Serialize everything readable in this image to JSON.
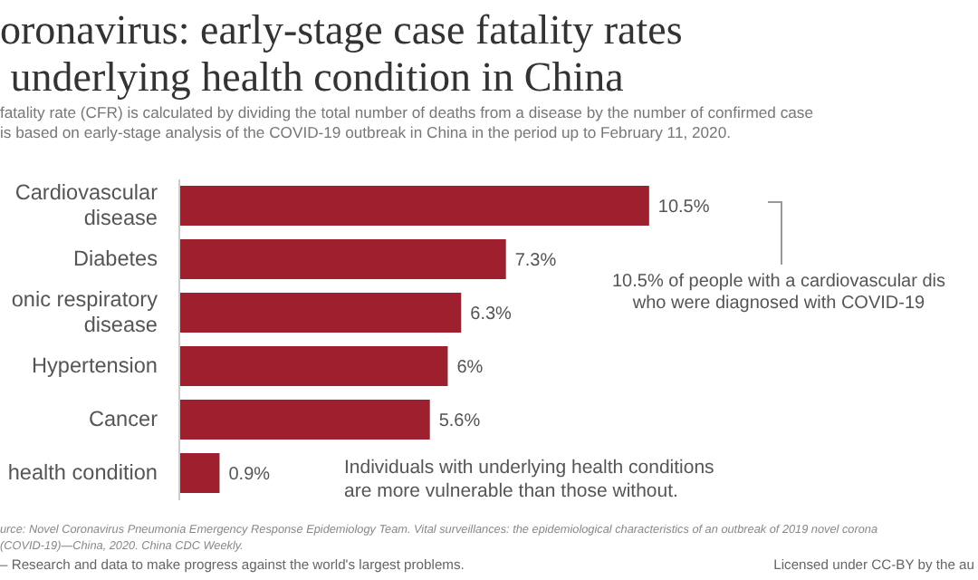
{
  "chart_data": {
    "type": "bar",
    "orientation": "horizontal",
    "title": "oronavirus: early-stage case fatality rates\n underlying health condition in China",
    "subtitle": "fatality rate (CFR) is calculated by dividing the total number of deaths from a disease by the number of confirmed case\nis based on early-stage analysis of the COVID-19 outbreak in China in the period up to February 11, 2020.",
    "categories": [
      "Cardiovascular disease",
      "Diabetes",
      "onic respiratory disease",
      "Hypertension",
      "Cancer",
      "health condition"
    ],
    "values": [
      10.5,
      7.3,
      6.3,
      6,
      5.6,
      0.9
    ],
    "value_labels": [
      "10.5%",
      "7.3%",
      "6.3%",
      "6%",
      "5.6%",
      "0.9%"
    ],
    "color": "#9e1f2e",
    "annotations": [
      "10.5% of people with a cardiovascular dis\nwho were diagnosed with COVID-19",
      "Individuals with underlying health conditions\nare more vulnerable than those without.",
      "urce: Novel Coronavirus Pneumonia Emergency Response Epidemiology Team. Vital surveillances: the epidemiological characteristics of an outbreak of 2019 novel corona\n(COVID-19)—China, 2020. China CDC Weekly.",
      "– Research and data to make progress against the world's largest problems.",
      "Licensed under CC-BY by the au"
    ]
  }
}
